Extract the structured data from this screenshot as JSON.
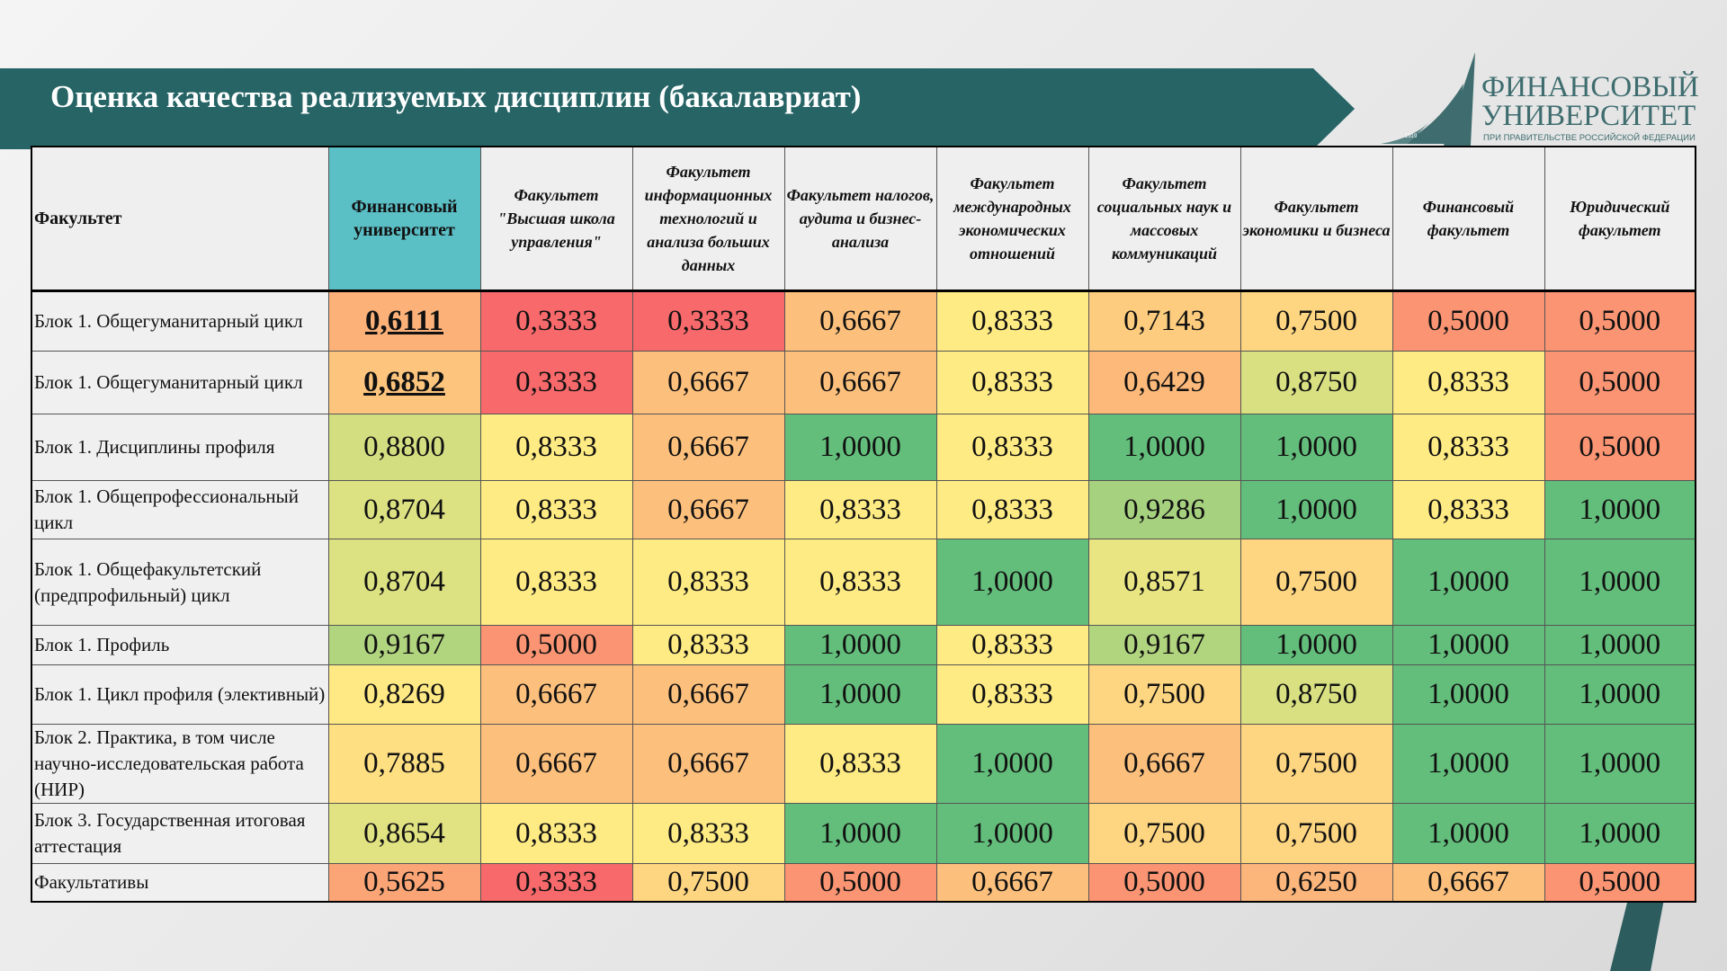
{
  "title": "Оценка качества реализуемых дисциплин (бакалавриат)",
  "logo": {
    "line1": "ФИНАНСОВЫЙ",
    "line2": "УНИВЕРСИТЕТ",
    "sub": "ПРИ ПРАВИТЕЛЬСТВЕ РОССИЙСКОЙ ФЕДЕРАЦИИ",
    "year": "1919"
  },
  "colors": {
    "banner": "#266466",
    "highlight": "#5bbfc6",
    "low": "#f8696b",
    "mid": "#ffeb84",
    "high": "#63be7b"
  },
  "headers": [
    "Факультет",
    "Финансовый университет",
    "Факультет \"Высшая школа управления\"",
    "Факультет информационных технологий и анализа больших данных",
    "Факультет налогов, аудита и бизнес-анализа",
    "Факультет международных экономических отношений",
    "Факультет социальных наук и массовых коммуникаций",
    "Факультет экономики и бизнеса",
    "Финансовый факультет",
    "Юридический факультет"
  ],
  "rows": [
    {
      "label": "Блок 1. Общегуманитарный цикл",
      "values": [
        "0,6111",
        "0,3333",
        "0,3333",
        "0,6667",
        "0,8333",
        "0,7143",
        "0,7500",
        "0,5000",
        "0,5000"
      ],
      "emphasis": true
    },
    {
      "label": "Блок 1. Общегуманитарный цикл",
      "values": [
        "0,6852",
        "0,3333",
        "0,6667",
        "0,6667",
        "0,8333",
        "0,6429",
        "0,8750",
        "0,8333",
        "0,5000"
      ],
      "emphasis": true
    },
    {
      "label": "Блок 1. Дисциплины профиля",
      "values": [
        "0,8800",
        "0,8333",
        "0,6667",
        "1,0000",
        "0,8333",
        "1,0000",
        "1,0000",
        "0,8333",
        "0,5000"
      ]
    },
    {
      "label": "Блок 1. Общепрофессиональный цикл",
      "values": [
        "0,8704",
        "0,8333",
        "0,6667",
        "0,8333",
        "0,8333",
        "0,9286",
        "1,0000",
        "0,8333",
        "1,0000"
      ]
    },
    {
      "label": "Блок 1. Общефакультетский (предпрофильный) цикл",
      "values": [
        "0,8704",
        "0,8333",
        "0,8333",
        "0,8333",
        "1,0000",
        "0,8571",
        "0,7500",
        "1,0000",
        "1,0000"
      ]
    },
    {
      "label": "Блок 1. Профиль",
      "values": [
        "0,9167",
        "0,5000",
        "0,8333",
        "1,0000",
        "0,8333",
        "0,9167",
        "1,0000",
        "1,0000",
        "1,0000"
      ]
    },
    {
      "label": "Блок 1. Цикл профиля (элективный)",
      "values": [
        "0,8269",
        "0,6667",
        "0,6667",
        "1,0000",
        "0,8333",
        "0,7500",
        "0,8750",
        "1,0000",
        "1,0000"
      ]
    },
    {
      "label": "Блок 2. Практика, в том числе научно-исследовательская работа (НИР)",
      "values": [
        "0,7885",
        "0,6667",
        "0,6667",
        "0,8333",
        "1,0000",
        "0,6667",
        "0,7500",
        "1,0000",
        "1,0000"
      ]
    },
    {
      "label": "Блок 3. Государственная итоговая аттестация",
      "values": [
        "0,8654",
        "0,8333",
        "0,8333",
        "1,0000",
        "1,0000",
        "0,7500",
        "0,7500",
        "1,0000",
        "1,0000"
      ]
    },
    {
      "label": "Факультативы",
      "values": [
        "0,5625",
        "0,3333",
        "0,7500",
        "0,5000",
        "0,6667",
        "0,5000",
        "0,6250",
        "0,6667",
        "0,5000"
      ]
    }
  ]
}
